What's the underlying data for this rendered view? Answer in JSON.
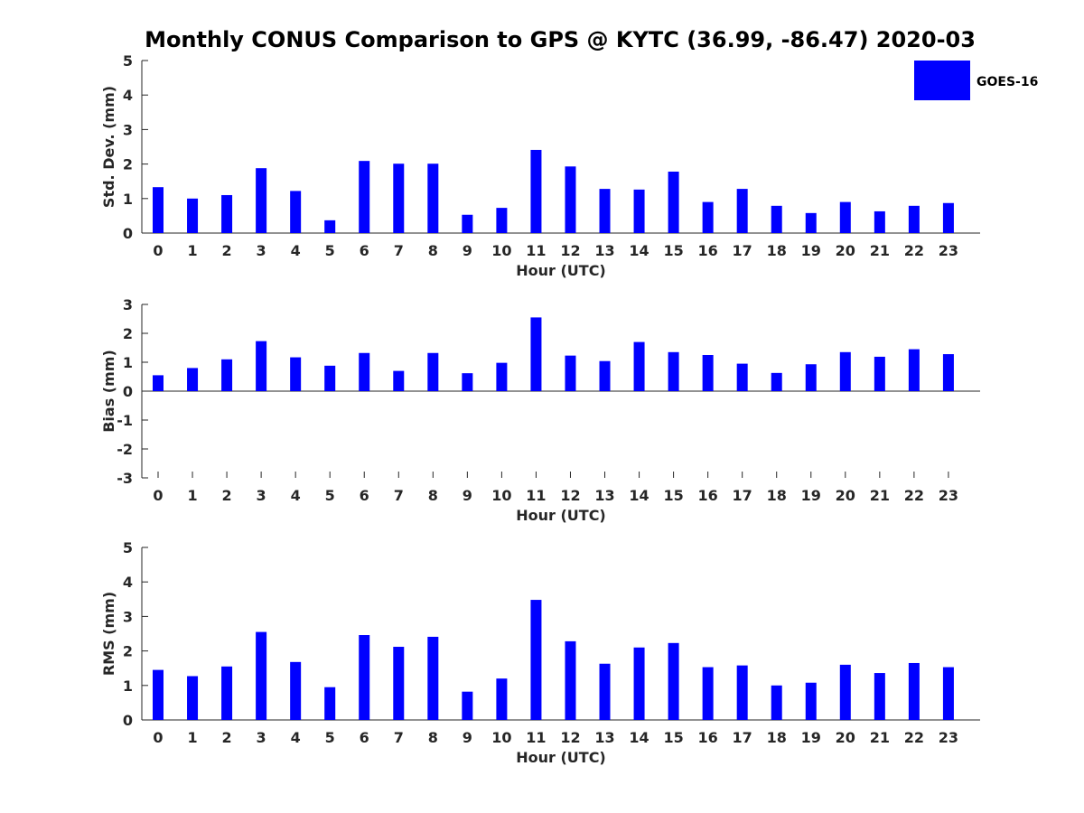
{
  "chart_data": {
    "title": "Monthly CONUS Comparison to GPS @ KYTC (36.99, -86.47) 2020-03",
    "legend": {
      "label": "GOES-16",
      "placement": "top-right",
      "color": "#0000ff"
    },
    "categories": [
      "0",
      "1",
      "2",
      "3",
      "4",
      "5",
      "6",
      "7",
      "8",
      "9",
      "10",
      "11",
      "12",
      "13",
      "14",
      "15",
      "16",
      "17",
      "18",
      "19",
      "20",
      "21",
      "22",
      "23"
    ],
    "panels": [
      {
        "type": "bar",
        "xlabel": "Hour (UTC)",
        "ylabel": "Std. Dev. (mm)",
        "ylim": [
          0,
          5
        ],
        "yticks": [
          "0",
          "1",
          "2",
          "3",
          "4",
          "5"
        ],
        "series": [
          {
            "name": "GOES-16",
            "values": [
              1.33,
              1.0,
              1.1,
              1.88,
              1.22,
              0.37,
              2.09,
              2.01,
              2.01,
              0.53,
              0.73,
              2.41,
              1.93,
              1.28,
              1.26,
              1.78,
              0.9,
              1.28,
              0.79,
              0.58,
              0.9,
              0.63,
              0.79,
              0.87
            ]
          }
        ]
      },
      {
        "type": "bar",
        "xlabel": "Hour (UTC)",
        "ylabel": "Bias (mm)",
        "ylim": [
          -3,
          3
        ],
        "yticks": [
          "-3",
          "-2",
          "-1",
          "0",
          "1",
          "2",
          "3"
        ],
        "series": [
          {
            "name": "GOES-16",
            "values": [
              0.55,
              0.8,
              1.1,
              1.73,
              1.17,
              0.88,
              1.32,
              0.7,
              1.32,
              0.62,
              0.98,
              2.55,
              1.23,
              1.04,
              1.7,
              1.35,
              1.25,
              0.95,
              0.63,
              0.93,
              1.35,
              1.19,
              1.45,
              1.28
            ]
          }
        ]
      },
      {
        "type": "bar",
        "xlabel": "Hour (UTC)",
        "ylabel": "RMS (mm)",
        "ylim": [
          0,
          5
        ],
        "yticks": [
          "0",
          "1",
          "2",
          "3",
          "4",
          "5"
        ],
        "series": [
          {
            "name": "GOES-16",
            "values": [
              1.45,
              1.27,
              1.55,
              2.55,
              1.68,
              0.95,
              2.46,
              2.12,
              2.41,
              0.82,
              1.2,
              3.48,
              2.28,
              1.63,
              2.1,
              2.23,
              1.53,
              1.58,
              1.0,
              1.08,
              1.6,
              1.36,
              1.65,
              1.53
            ]
          }
        ]
      }
    ]
  }
}
